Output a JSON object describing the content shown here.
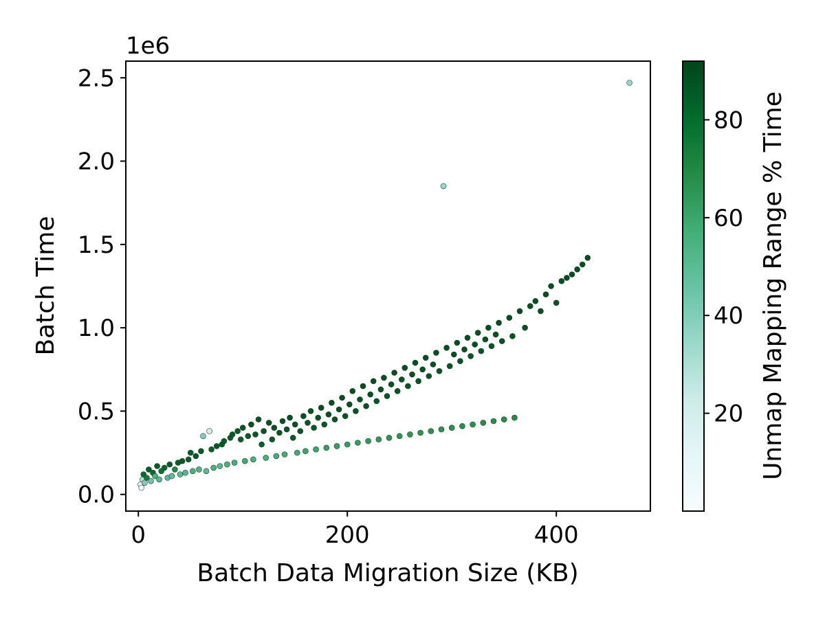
{
  "chart_data": {
    "type": "scatter",
    "title": "",
    "xlabel": "Batch Data Migration Size (KB)",
    "ylabel": "Batch Time",
    "y_offset_label": "1e6",
    "xlim": [
      -12,
      490
    ],
    "ylim": [
      -100000,
      2600000
    ],
    "x_ticks": [
      0,
      200,
      400
    ],
    "x_tick_labels": [
      "0",
      "200",
      "400"
    ],
    "y_ticks": [
      0,
      500000,
      1000000,
      1500000,
      2000000,
      2500000
    ],
    "y_tick_labels": [
      "0.0",
      "0.5",
      "1.0",
      "1.5",
      "2.0",
      "2.5"
    ],
    "grid": false,
    "colorbar": {
      "label": "Unmap Mapping Range % Time",
      "range": [
        0,
        92
      ],
      "ticks": [
        20,
        40,
        60,
        80
      ],
      "tick_labels": [
        "20",
        "40",
        "60",
        "80"
      ],
      "colormap": "BuGn",
      "colors": [
        "#f7fcfd",
        "#e5f5f9",
        "#ccece6",
        "#99d8c9",
        "#66c2a4",
        "#41ae76",
        "#238b45",
        "#006d2c",
        "#00441b"
      ]
    },
    "series": [
      {
        "points": [
          [
            2,
            60000,
            12
          ],
          [
            3,
            40000,
            5
          ],
          [
            4,
            90000,
            30
          ],
          [
            5,
            120000,
            80
          ],
          [
            6,
            70000,
            40
          ],
          [
            8,
            100000,
            75
          ],
          [
            10,
            150000,
            85
          ],
          [
            12,
            80000,
            45
          ],
          [
            14,
            130000,
            80
          ],
          [
            16,
            110000,
            55
          ],
          [
            18,
            170000,
            85
          ],
          [
            20,
            90000,
            50
          ],
          [
            22,
            140000,
            78
          ],
          [
            25,
            160000,
            82
          ],
          [
            28,
            100000,
            50
          ],
          [
            30,
            180000,
            85
          ],
          [
            32,
            110000,
            48
          ],
          [
            35,
            150000,
            70
          ],
          [
            38,
            190000,
            84
          ],
          [
            40,
            120000,
            50
          ],
          [
            42,
            200000,
            86
          ],
          [
            45,
            130000,
            52
          ],
          [
            48,
            210000,
            85
          ],
          [
            50,
            250000,
            84
          ],
          [
            52,
            140000,
            55
          ],
          [
            55,
            230000,
            86
          ],
          [
            58,
            150000,
            54
          ],
          [
            60,
            260000,
            85
          ],
          [
            62,
            350000,
            40
          ],
          [
            65,
            140000,
            50
          ],
          [
            68,
            380000,
            20
          ],
          [
            70,
            270000,
            84
          ],
          [
            72,
            160000,
            55
          ],
          [
            75,
            290000,
            86
          ],
          [
            78,
            170000,
            52
          ],
          [
            80,
            300000,
            85
          ],
          [
            82,
            320000,
            84
          ],
          [
            85,
            180000,
            55
          ],
          [
            88,
            340000,
            85
          ],
          [
            90,
            360000,
            86
          ],
          [
            92,
            190000,
            56
          ],
          [
            95,
            380000,
            86
          ],
          [
            98,
            330000,
            84
          ],
          [
            100,
            400000,
            87
          ],
          [
            102,
            200000,
            58
          ],
          [
            105,
            350000,
            85
          ],
          [
            108,
            420000,
            88
          ],
          [
            110,
            210000,
            56
          ],
          [
            112,
            360000,
            86
          ],
          [
            115,
            450000,
            87
          ],
          [
            118,
            300000,
            84
          ],
          [
            120,
            380000,
            87
          ],
          [
            122,
            220000,
            56
          ],
          [
            125,
            430000,
            88
          ],
          [
            128,
            330000,
            85
          ],
          [
            130,
            400000,
            88
          ],
          [
            132,
            230000,
            57
          ],
          [
            135,
            370000,
            86
          ],
          [
            138,
            440000,
            88
          ],
          [
            140,
            240000,
            58
          ],
          [
            142,
            390000,
            87
          ],
          [
            145,
            460000,
            88
          ],
          [
            148,
            340000,
            85
          ],
          [
            150,
            420000,
            88
          ],
          [
            152,
            250000,
            58
          ],
          [
            155,
            380000,
            86
          ],
          [
            158,
            470000,
            88
          ],
          [
            160,
            260000,
            60
          ],
          [
            162,
            430000,
            87
          ],
          [
            165,
            500000,
            88
          ],
          [
            168,
            400000,
            86
          ],
          [
            170,
            270000,
            60
          ],
          [
            172,
            460000,
            88
          ],
          [
            175,
            520000,
            89
          ],
          [
            178,
            420000,
            86
          ],
          [
            180,
            280000,
            62
          ],
          [
            182,
            480000,
            88
          ],
          [
            185,
            550000,
            89
          ],
          [
            188,
            450000,
            87
          ],
          [
            190,
            290000,
            62
          ],
          [
            192,
            510000,
            88
          ],
          [
            195,
            580000,
            89
          ],
          [
            198,
            470000,
            87
          ],
          [
            200,
            300000,
            63
          ],
          [
            202,
            540000,
            88
          ],
          [
            205,
            620000,
            89
          ],
          [
            208,
            500000,
            87
          ],
          [
            210,
            310000,
            63
          ],
          [
            212,
            570000,
            88
          ],
          [
            215,
            650000,
            89
          ],
          [
            218,
            530000,
            87
          ],
          [
            220,
            320000,
            64
          ],
          [
            222,
            600000,
            88
          ],
          [
            225,
            680000,
            89
          ],
          [
            228,
            560000,
            87
          ],
          [
            230,
            330000,
            64
          ],
          [
            232,
            630000,
            88
          ],
          [
            235,
            700000,
            89
          ],
          [
            238,
            590000,
            87
          ],
          [
            240,
            340000,
            65
          ],
          [
            242,
            660000,
            88
          ],
          [
            245,
            730000,
            89
          ],
          [
            248,
            620000,
            87
          ],
          [
            250,
            350000,
            65
          ],
          [
            252,
            690000,
            88
          ],
          [
            255,
            760000,
            89
          ],
          [
            258,
            650000,
            87
          ],
          [
            260,
            360000,
            65
          ],
          [
            262,
            720000,
            88
          ],
          [
            265,
            790000,
            89
          ],
          [
            268,
            680000,
            87
          ],
          [
            270,
            370000,
            66
          ],
          [
            272,
            750000,
            88
          ],
          [
            275,
            820000,
            89
          ],
          [
            278,
            710000,
            87
          ],
          [
            280,
            380000,
            66
          ],
          [
            282,
            780000,
            88
          ],
          [
            285,
            850000,
            89
          ],
          [
            288,
            740000,
            87
          ],
          [
            290,
            390000,
            66
          ],
          [
            292,
            1850000,
            35
          ],
          [
            295,
            880000,
            89
          ],
          [
            298,
            770000,
            87
          ],
          [
            300,
            400000,
            67
          ],
          [
            302,
            840000,
            88
          ],
          [
            305,
            910000,
            89
          ],
          [
            308,
            800000,
            87
          ],
          [
            310,
            410000,
            67
          ],
          [
            312,
            870000,
            88
          ],
          [
            315,
            940000,
            89
          ],
          [
            318,
            830000,
            87
          ],
          [
            320,
            420000,
            67
          ],
          [
            322,
            900000,
            88
          ],
          [
            325,
            970000,
            89
          ],
          [
            328,
            860000,
            87
          ],
          [
            330,
            430000,
            68
          ],
          [
            332,
            930000,
            88
          ],
          [
            335,
            1000000,
            89
          ],
          [
            338,
            890000,
            87
          ],
          [
            340,
            440000,
            68
          ],
          [
            342,
            960000,
            88
          ],
          [
            345,
            1030000,
            89
          ],
          [
            348,
            920000,
            87
          ],
          [
            350,
            450000,
            68
          ],
          [
            355,
            1060000,
            89
          ],
          [
            358,
            950000,
            87
          ],
          [
            360,
            460000,
            69
          ],
          [
            365,
            1100000,
            89
          ],
          [
            370,
            1000000,
            88
          ],
          [
            375,
            1130000,
            89
          ],
          [
            380,
            1160000,
            89
          ],
          [
            385,
            1100000,
            88
          ],
          [
            390,
            1200000,
            89
          ],
          [
            395,
            1250000,
            89
          ],
          [
            400,
            1150000,
            88
          ],
          [
            405,
            1280000,
            89
          ],
          [
            410,
            1300000,
            89
          ],
          [
            415,
            1320000,
            89
          ],
          [
            420,
            1350000,
            89
          ],
          [
            425,
            1380000,
            89
          ],
          [
            430,
            1420000,
            89
          ],
          [
            470,
            2470000,
            35
          ]
        ]
      }
    ]
  }
}
